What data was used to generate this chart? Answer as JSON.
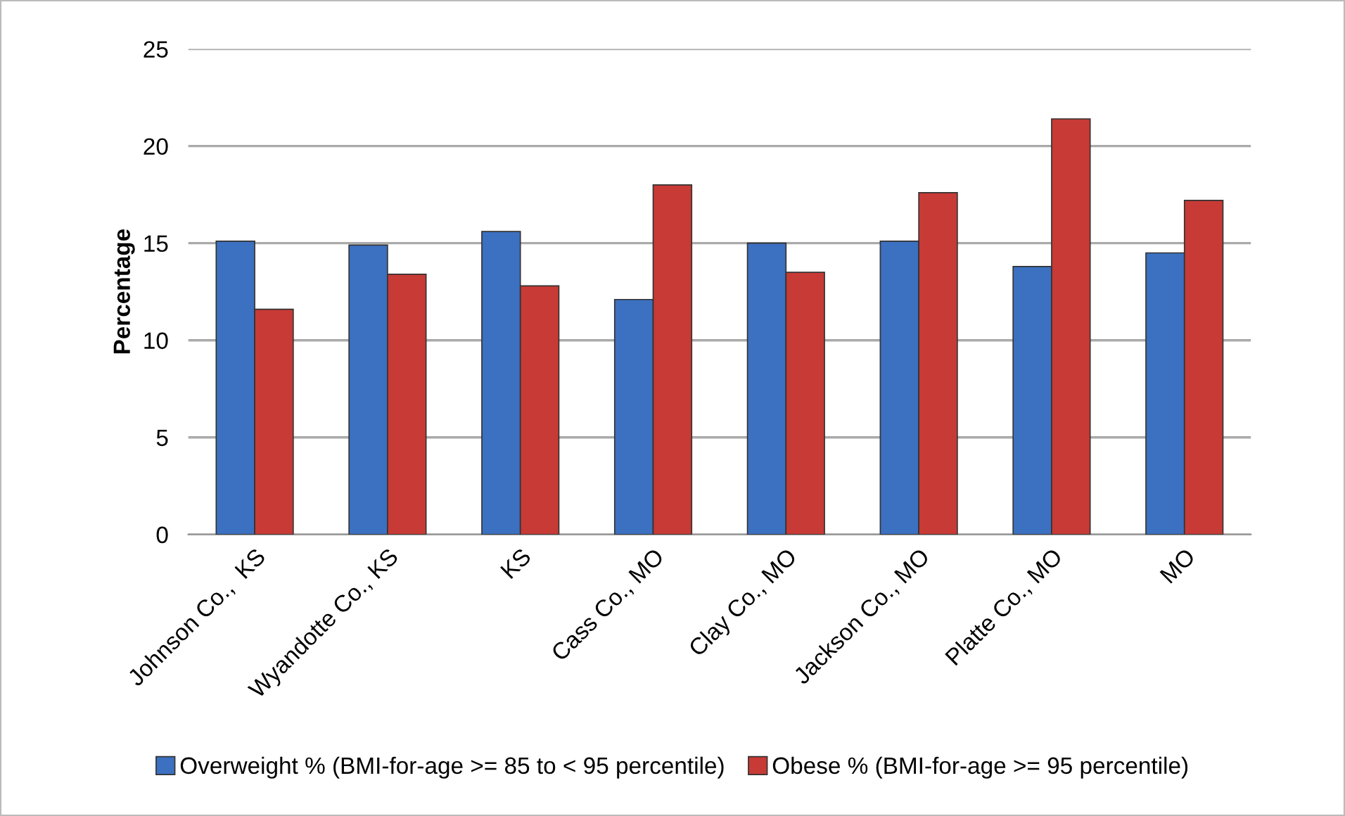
{
  "chart_data": {
    "type": "bar",
    "ylabel": "Percentage",
    "categories": [
      "Johnson Co.,  KS",
      "Wyandotte Co., KS",
      "KS",
      "Cass Co., MO",
      "Clay Co., MO",
      "Jackson Co., MO",
      "Platte Co., MO",
      "MO"
    ],
    "series": [
      {
        "name": "Overweight % (BMI-for-age >= 85 to < 95 percentile)",
        "color": "#3c70c0",
        "values": [
          15.1,
          14.9,
          15.6,
          12.1,
          15.0,
          15.1,
          13.8,
          14.5
        ]
      },
      {
        "name": "Obese % (BMI-for-age >= 95 percentile)",
        "color": "#c83a35",
        "values": [
          11.6,
          13.4,
          12.8,
          18.0,
          13.5,
          17.6,
          21.4,
          17.2
        ]
      }
    ],
    "ylim": [
      0,
      25
    ],
    "yticks": [
      0,
      5,
      10,
      15,
      20,
      25
    ],
    "grid": "y",
    "legend": "bottom"
  }
}
